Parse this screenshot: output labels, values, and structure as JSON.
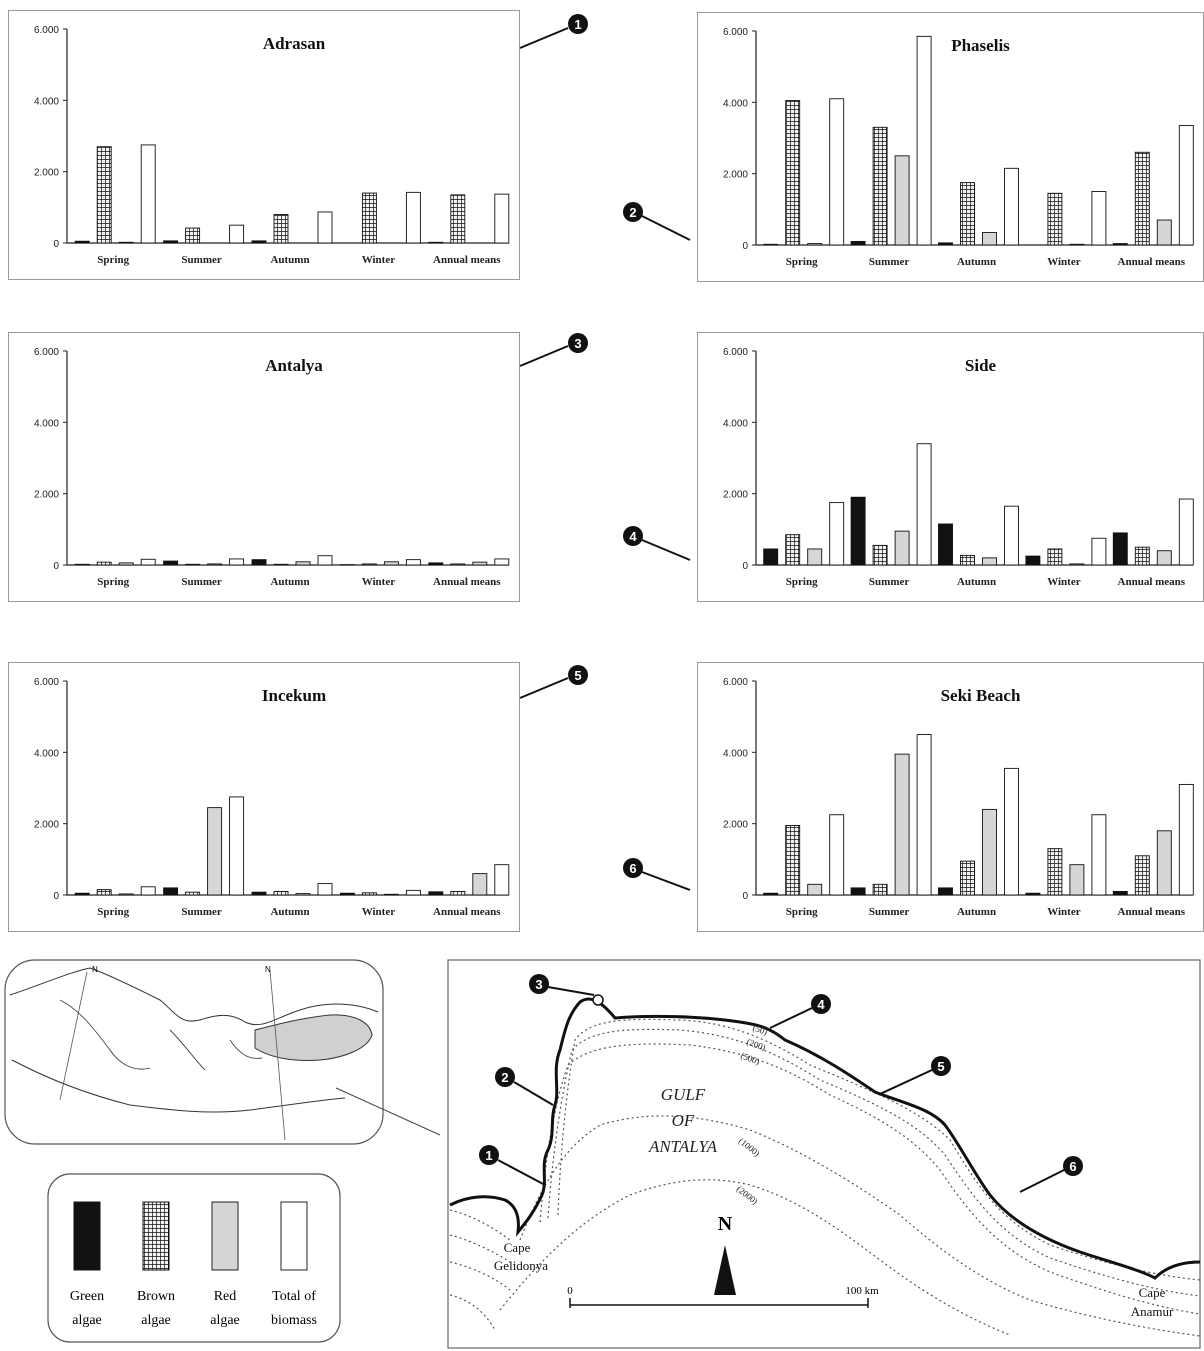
{
  "legend": {
    "items": [
      {
        "line1": "Green",
        "line2": "algae",
        "fill": "black"
      },
      {
        "line1": "Brown",
        "line2": "algae",
        "fill": "grid"
      },
      {
        "line1": "Red",
        "line2": "algae",
        "fill": "light"
      },
      {
        "line1": "Total of",
        "line2": "biomass",
        "fill": "white"
      }
    ]
  },
  "map": {
    "gulf_label": [
      "GULF",
      "OF",
      "ANTALYA"
    ],
    "depth_labels": [
      "(50)",
      "(200)",
      "(500)",
      "(1000)",
      "(2000)"
    ],
    "north": "N",
    "scale_start": "0",
    "scale_end": "100 km",
    "cape_gelidonya": [
      "Cape",
      "Gelidonya"
    ],
    "cape_anamur": [
      "Cape",
      "Anamur"
    ],
    "inset_north": "N",
    "site_numbers": [
      "1",
      "2",
      "3",
      "4",
      "5",
      "6"
    ]
  },
  "chart_data": [
    {
      "type": "bar",
      "title": "Adrasan",
      "marker": "1",
      "categories": [
        "Spring",
        "Summer",
        "Autumn",
        "Winter",
        "Annual means"
      ],
      "yticks": [
        "0",
        "2.000",
        "4.000",
        "6.000"
      ],
      "ylim": [
        0,
        6000
      ],
      "series": [
        {
          "name": "Green algae",
          "values": [
            50,
            60,
            60,
            0,
            20
          ]
        },
        {
          "name": "Brown algae",
          "values": [
            2700,
            420,
            800,
            1400,
            1350
          ]
        },
        {
          "name": "Red algae",
          "values": [
            20,
            0,
            0,
            0,
            0
          ]
        },
        {
          "name": "Total of biomass",
          "values": [
            2750,
            500,
            870,
            1420,
            1370
          ]
        }
      ]
    },
    {
      "type": "bar",
      "title": "Phaselis",
      "marker": "2",
      "categories": [
        "Spring",
        "Summer",
        "Autumn",
        "Winter",
        "Annual means"
      ],
      "yticks": [
        "0",
        "2.000",
        "4.000",
        "6.000"
      ],
      "ylim": [
        0,
        6000
      ],
      "series": [
        {
          "name": "Green algae",
          "values": [
            20,
            100,
            60,
            0,
            40
          ]
        },
        {
          "name": "Brown algae",
          "values": [
            4050,
            3300,
            1750,
            1450,
            2600
          ]
        },
        {
          "name": "Red algae",
          "values": [
            40,
            2500,
            350,
            20,
            700
          ]
        },
        {
          "name": "Total of biomass",
          "values": [
            4100,
            5850,
            2150,
            1500,
            3350
          ]
        }
      ]
    },
    {
      "type": "bar",
      "title": "Antalya",
      "marker": "3",
      "categories": [
        "Spring",
        "Summer",
        "Autumn",
        "Winter",
        "Annual means"
      ],
      "yticks": [
        "0",
        "2.000",
        "4.000",
        "6.000"
      ],
      "ylim": [
        0,
        6000
      ],
      "series": [
        {
          "name": "Green algae",
          "values": [
            20,
            110,
            150,
            10,
            60
          ]
        },
        {
          "name": "Brown algae",
          "values": [
            80,
            20,
            20,
            30,
            30
          ]
        },
        {
          "name": "Red algae",
          "values": [
            60,
            30,
            90,
            90,
            80
          ]
        },
        {
          "name": "Total of biomass",
          "values": [
            160,
            170,
            260,
            150,
            170
          ]
        }
      ]
    },
    {
      "type": "bar",
      "title": "Side",
      "marker": "4",
      "categories": [
        "Spring",
        "Summer",
        "Autumn",
        "Winter",
        "Annual means"
      ],
      "yticks": [
        "0",
        "2.000",
        "4.000",
        "6.000"
      ],
      "ylim": [
        0,
        6000
      ],
      "series": [
        {
          "name": "Green algae",
          "values": [
            450,
            1900,
            1150,
            250,
            900
          ]
        },
        {
          "name": "Brown algae",
          "values": [
            850,
            550,
            270,
            450,
            500
          ]
        },
        {
          "name": "Red algae",
          "values": [
            450,
            950,
            200,
            30,
            400
          ]
        },
        {
          "name": "Total of biomass",
          "values": [
            1750,
            3400,
            1650,
            750,
            1850
          ]
        }
      ]
    },
    {
      "type": "bar",
      "title": "Incekum",
      "marker": "5",
      "categories": [
        "Spring",
        "Summer",
        "Autumn",
        "Winter",
        "Annual means"
      ],
      "yticks": [
        "0",
        "2.000",
        "4.000",
        "6.000"
      ],
      "ylim": [
        0,
        6000
      ],
      "series": [
        {
          "name": "Green algae",
          "values": [
            50,
            200,
            80,
            50,
            90
          ]
        },
        {
          "name": "Brown algae",
          "values": [
            150,
            80,
            100,
            60,
            100
          ]
        },
        {
          "name": "Red algae",
          "values": [
            30,
            2450,
            40,
            20,
            600
          ]
        },
        {
          "name": "Total of biomass",
          "values": [
            230,
            2750,
            320,
            130,
            850
          ]
        }
      ]
    },
    {
      "type": "bar",
      "title": "Seki Beach",
      "marker": "6",
      "categories": [
        "Spring",
        "Summer",
        "Autumn",
        "Winter",
        "Annual means"
      ],
      "yticks": [
        "0",
        "2.000",
        "4.000",
        "6.000"
      ],
      "ylim": [
        0,
        6000
      ],
      "series": [
        {
          "name": "Green algae",
          "values": [
            50,
            200,
            200,
            50,
            100
          ]
        },
        {
          "name": "Brown algae",
          "values": [
            1950,
            300,
            950,
            1300,
            1100
          ]
        },
        {
          "name": "Red algae",
          "values": [
            300,
            3950,
            2400,
            850,
            1800
          ]
        },
        {
          "name": "Total of biomass",
          "values": [
            2250,
            4500,
            3550,
            2250,
            3100
          ]
        }
      ]
    }
  ]
}
